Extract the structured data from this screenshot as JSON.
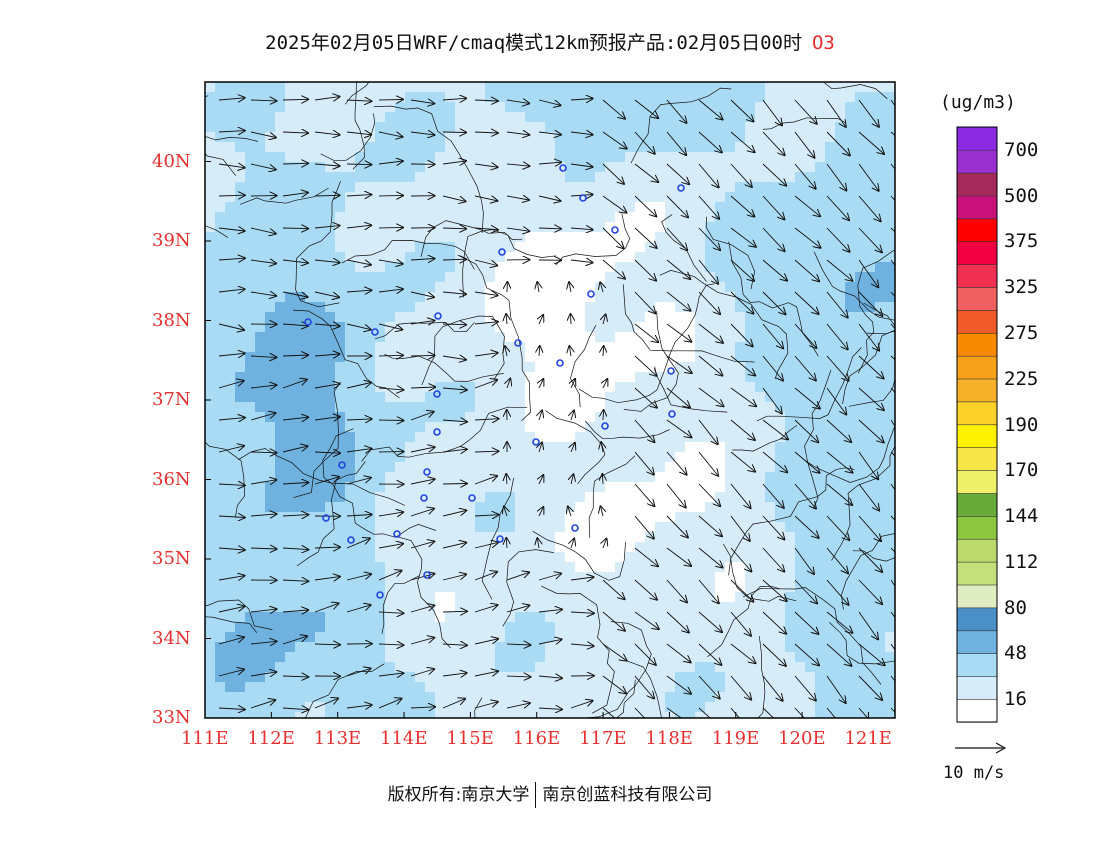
{
  "title": {
    "main": "2025年02月05日WRF/cmaq模式12km预报产品:02月05日00时",
    "species": "O3"
  },
  "axes": {
    "lat_labels": [
      "40N",
      "39N",
      "38N",
      "37N",
      "36N",
      "35N",
      "34N",
      "33N"
    ],
    "lat_values": [
      40,
      39,
      38,
      37,
      36,
      35,
      34,
      33
    ],
    "lon_labels": [
      "111E",
      "112E",
      "113E",
      "114E",
      "115E",
      "116E",
      "117E",
      "118E",
      "119E",
      "120E",
      "121E"
    ],
    "lon_values": [
      111,
      112,
      113,
      114,
      115,
      116,
      117,
      118,
      119,
      120,
      121
    ],
    "lat_range": [
      33,
      41
    ],
    "lon_range": [
      111,
      121.4
    ]
  },
  "colorbar": {
    "unit": "(ug/m3)",
    "labels": [
      "700",
      "500",
      "375",
      "325",
      "275",
      "225",
      "190",
      "170",
      "144",
      "112",
      "80",
      "48",
      "16"
    ],
    "colors": [
      "#ffffff",
      "#d6ecf9",
      "#a9dbf4",
      "#6fb2e0",
      "#4a8fc6",
      "#e0ecc2",
      "#c3e07a",
      "#bddb6c",
      "#8cc63f",
      "#6aaa3a",
      "#eff06a",
      "#f7e54a",
      "#fff200",
      "#fcd12a",
      "#f7b02a",
      "#f7a01c",
      "#f78a00",
      "#ef5a28",
      "#f06060",
      "#ef3050",
      "#f00040",
      "#ff0000",
      "#c8127a",
      "#a52a5a",
      "#9a30d0",
      "#8a2be2"
    ]
  },
  "wind_reference": "10 m/s",
  "credit": {
    "left": "版权所有:南京大学",
    "right": "南京创蓝科技有限公司"
  },
  "map_layers": {
    "base_color": "#ffffff",
    "light": "#d6ecf9",
    "medium": "#a9dbf4",
    "dark": "#6fb2e0",
    "darkest": "#4a8fc6",
    "station_color": "#2244dd",
    "boundary_color": "#111111"
  }
}
